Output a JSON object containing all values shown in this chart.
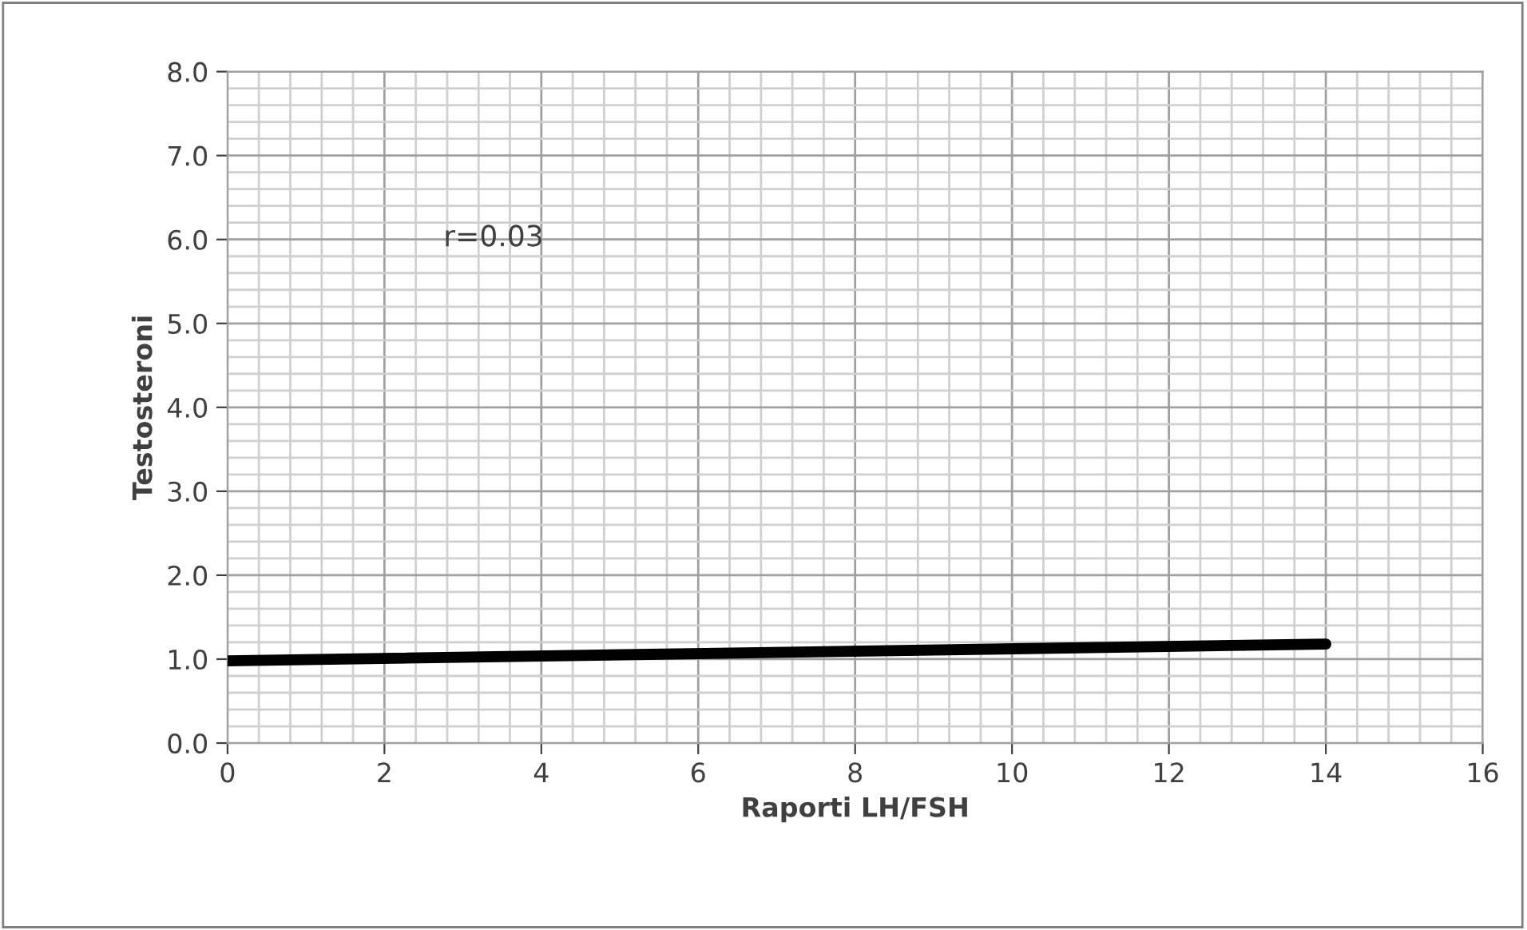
{
  "chart_data": {
    "type": "line",
    "xlabel": "Raporti LH/FSH",
    "ylabel": "Testosteroni",
    "x": [
      0,
      14
    ],
    "series": [
      {
        "color": "#000000",
        "values": [
          0.98,
          1.18
        ]
      }
    ],
    "xlim": [
      0,
      16
    ],
    "xticks": [
      0,
      2,
      4,
      6,
      8,
      10,
      12,
      14,
      16
    ],
    "ylim": [
      0,
      8
    ],
    "yticks": [
      {
        "value": 0,
        "label": "0.0"
      },
      {
        "value": 1,
        "label": "1.0"
      },
      {
        "value": 2,
        "label": "2.0"
      },
      {
        "value": 3,
        "label": "3.0"
      },
      {
        "value": 4,
        "label": "4.0"
      },
      {
        "value": 5,
        "label": "5.0"
      },
      {
        "value": 6,
        "label": "6.0"
      },
      {
        "value": 7,
        "label": "7.0"
      },
      {
        "value": 8,
        "label": "8.0"
      }
    ],
    "grid": true,
    "marker": "none",
    "line_style": "solid",
    "annotations": [
      "r=0.03"
    ]
  }
}
